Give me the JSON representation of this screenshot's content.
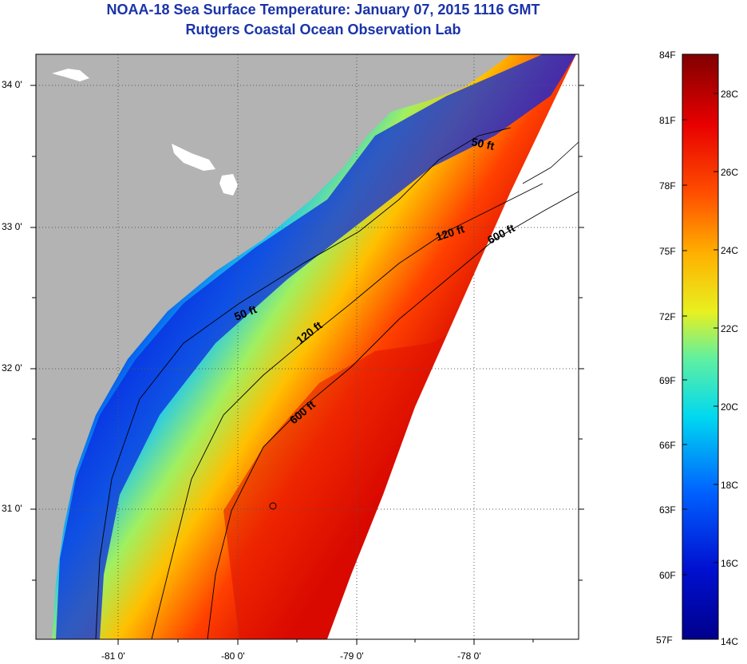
{
  "title": "NOAA-18 Sea Surface Temperature:  January 07, 2015 1116 GMT",
  "subtitle": "Rutgers Coastal Ocean Observation Lab",
  "map": {
    "lat_labels": [
      "34 0'",
      "33 0'",
      "32 0'",
      "31 0'"
    ],
    "lon_labels": [
      "-81 0'",
      "-80 0'",
      "-79 0'",
      "-78 0'"
    ],
    "contours": [
      {
        "label": "50 ft"
      },
      {
        "label": "120 ft"
      },
      {
        "label": "600 ft"
      },
      {
        "label": "50 ft"
      },
      {
        "label": "120 ft"
      },
      {
        "label": "600 ft"
      }
    ],
    "land_color": "#b3b3b3"
  },
  "colorbar": {
    "fahrenheit": [
      "84F",
      "81F",
      "78F",
      "75F",
      "72F",
      "69F",
      "66F",
      "63F",
      "60F",
      "57F"
    ],
    "celsius": [
      "28C",
      "26C",
      "24C",
      "22C",
      "20C",
      "18C",
      "16C",
      "14C"
    ],
    "min_c": 14,
    "max_c": 29
  }
}
